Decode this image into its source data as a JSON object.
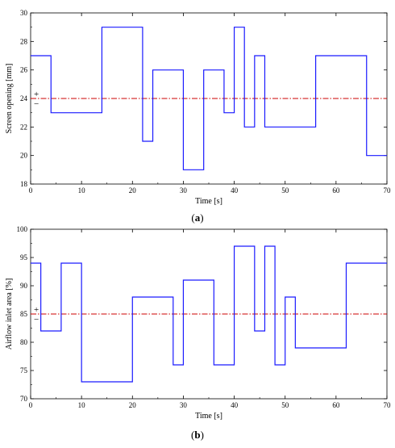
{
  "chart_data": [
    {
      "type": "line",
      "step": true,
      "xlabel": "Time [s]",
      "ylabel": "Screen opening [mm]",
      "caption_letter": "a",
      "xlim": [
        0,
        70
      ],
      "ylim": [
        18,
        30
      ],
      "xticks": [
        0,
        10,
        20,
        30,
        40,
        50,
        60,
        70
      ],
      "yticks": [
        18,
        20,
        22,
        24,
        26,
        28,
        30
      ],
      "xtick_labels": [
        "0",
        "10",
        "20",
        "30",
        "40",
        "50",
        "60",
        "70"
      ],
      "ytick_labels": [
        "18",
        "20",
        "22",
        "24",
        "26",
        "28",
        "30"
      ],
      "reference": {
        "y": 24,
        "plus": "+",
        "minus": "−"
      },
      "grid": false,
      "colors": {
        "series": "#1a1aff",
        "reference": "#cc0000"
      },
      "series": [
        {
          "x": [
            0,
            4,
            14,
            22,
            24,
            30,
            34,
            38,
            40,
            42,
            44,
            46,
            56,
            66,
            70
          ],
          "y": [
            27,
            23,
            29,
            21,
            26,
            19,
            26,
            23,
            29,
            22,
            27,
            22,
            27,
            20,
            20
          ]
        }
      ]
    },
    {
      "type": "line",
      "step": true,
      "xlabel": "Time [s]",
      "ylabel": "Airflow inlet area [%]",
      "caption_letter": "b",
      "xlim": [
        0,
        70
      ],
      "ylim": [
        70,
        100
      ],
      "xticks": [
        0,
        10,
        20,
        30,
        40,
        50,
        60,
        70
      ],
      "yticks": [
        70,
        75,
        80,
        85,
        90,
        95,
        100
      ],
      "xtick_labels": [
        "0",
        "10",
        "20",
        "30",
        "40",
        "50",
        "60",
        "70"
      ],
      "ytick_labels": [
        "70",
        "75",
        "80",
        "85",
        "90",
        "95",
        "100"
      ],
      "reference": {
        "y": 85,
        "plus": "+",
        "minus": "−"
      },
      "grid": false,
      "colors": {
        "series": "#1a1aff",
        "reference": "#cc0000"
      },
      "series": [
        {
          "x": [
            0,
            2,
            6,
            10,
            20,
            28,
            30,
            36,
            40,
            44,
            46,
            48,
            50,
            52,
            62,
            70
          ],
          "y": [
            94,
            82,
            94,
            73,
            88,
            76,
            91,
            76,
            97,
            82,
            97,
            76,
            88,
            79,
            94,
            94
          ]
        }
      ]
    }
  ]
}
